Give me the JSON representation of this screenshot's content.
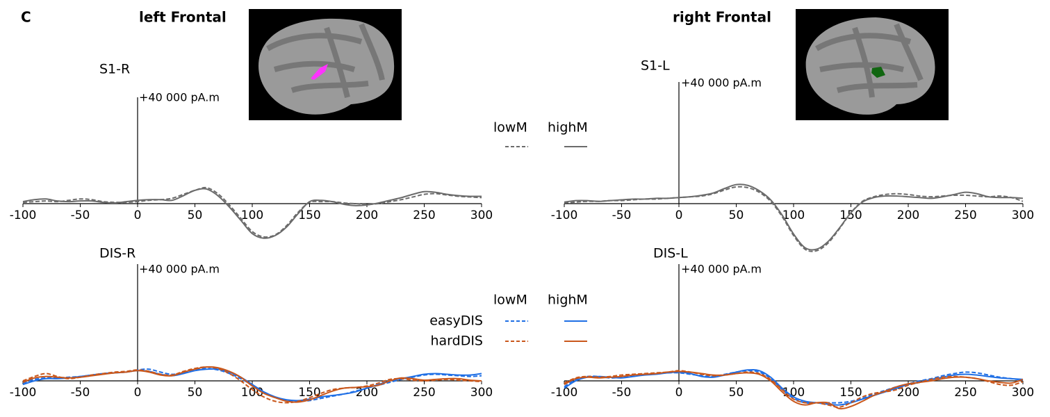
{
  "panel_label": "C",
  "left_title": "left Frontal",
  "right_title": "right Frontal",
  "chart_data": [
    {
      "type": "line",
      "title": "S1-R",
      "x": [
        -100,
        -90,
        -80,
        -70,
        -60,
        -50,
        -40,
        -30,
        -20,
        -10,
        0,
        10,
        20,
        30,
        40,
        50,
        60,
        70,
        80,
        90,
        100,
        110,
        120,
        130,
        140,
        150,
        160,
        170,
        180,
        190,
        200,
        210,
        220,
        230,
        240,
        250,
        260,
        270,
        280,
        290,
        300
      ],
      "xlim": [
        -100,
        300
      ],
      "xticks": [
        -100,
        -50,
        0,
        50,
        100,
        150,
        200,
        250,
        300
      ],
      "ylim": [
        -20000,
        40000
      ],
      "yticks": [
        {
          "value": 40000,
          "label": "+40 000 pA.m"
        }
      ],
      "series": [
        {
          "name": "lowM",
          "color": "#6b6b6b",
          "dash": true,
          "values": [
            500,
            750,
            1000,
            750,
            1250,
            1750,
            1500,
            750,
            500,
            500,
            750,
            1250,
            1500,
            2000,
            3500,
            5000,
            6000,
            3750,
            -500,
            -5500,
            -10500,
            -12500,
            -11750,
            -8250,
            -3250,
            500,
            750,
            750,
            250,
            0,
            -250,
            0,
            750,
            1500,
            2500,
            3500,
            3750,
            3250,
            2750,
            2500,
            2250
          ]
        },
        {
          "name": "highM",
          "color": "#6b6b6b",
          "dash": false,
          "values": [
            750,
            1500,
            1750,
            1000,
            750,
            1000,
            1000,
            500,
            250,
            750,
            1250,
            1500,
            1500,
            1250,
            3000,
            5000,
            5500,
            3000,
            -1250,
            -6250,
            -11250,
            -13000,
            -12000,
            -8750,
            -3750,
            750,
            1250,
            750,
            -250,
            -750,
            -500,
            250,
            1250,
            2250,
            3500,
            4500,
            4250,
            3500,
            3000,
            2750,
            2750
          ]
        }
      ]
    },
    {
      "type": "line",
      "title": "S1-L",
      "x": [
        -100,
        -90,
        -80,
        -70,
        -60,
        -50,
        -40,
        -30,
        -20,
        -10,
        0,
        10,
        20,
        30,
        40,
        50,
        60,
        70,
        80,
        90,
        100,
        110,
        120,
        130,
        140,
        150,
        160,
        170,
        180,
        190,
        200,
        210,
        220,
        230,
        240,
        250,
        260,
        270,
        280,
        290,
        300
      ],
      "xlim": [
        -100,
        300
      ],
      "xticks": [
        -100,
        -50,
        0,
        50,
        100,
        150,
        200,
        250,
        300
      ],
      "ylim": [
        -20000,
        40000
      ],
      "yticks": [
        {
          "value": 40000,
          "label": "+40 000 pA.m"
        }
      ],
      "series": [
        {
          "color": "#6b6b6b",
          "dash": true,
          "values": [
            250,
            500,
            750,
            750,
            1000,
            1000,
            1250,
            1500,
            1500,
            1750,
            2000,
            2250,
            2500,
            3250,
            4500,
            5500,
            5250,
            3750,
            750,
            -4250,
            -10500,
            -15000,
            -15500,
            -13000,
            -8250,
            -3000,
            750,
            2250,
            3000,
            3250,
            3000,
            2500,
            2250,
            2500,
            2750,
            2750,
            2500,
            2250,
            2500,
            2000,
            750
          ]
        },
        {
          "color": "#6b6b6b",
          "dash": false,
          "values": [
            500,
            1000,
            1000,
            750,
            1000,
            1250,
            1500,
            1500,
            1750,
            1750,
            2000,
            2250,
            2750,
            3500,
            5000,
            6250,
            6000,
            4250,
            1250,
            -3750,
            -10000,
            -14500,
            -15000,
            -12500,
            -8000,
            -3000,
            500,
            2000,
            2500,
            2500,
            2250,
            2000,
            1750,
            2250,
            3000,
            3750,
            3250,
            2250,
            2000,
            2000,
            1750
          ]
        }
      ]
    },
    {
      "type": "line",
      "title": "DIS-R",
      "x": [
        -100,
        -90,
        -80,
        -70,
        -60,
        -50,
        -40,
        -30,
        -20,
        -10,
        0,
        10,
        20,
        30,
        40,
        50,
        60,
        70,
        80,
        90,
        100,
        110,
        120,
        130,
        140,
        150,
        160,
        170,
        180,
        190,
        200,
        210,
        220,
        230,
        240,
        250,
        260,
        270,
        280,
        290,
        300
      ],
      "xlim": [
        -100,
        300
      ],
      "xticks": [
        -100,
        -50,
        0,
        50,
        100,
        150,
        200,
        250,
        300
      ],
      "ylim": [
        -20000,
        40000
      ],
      "yticks": [
        {
          "value": 40000,
          "label": "+40 000 pA.m"
        }
      ],
      "series": [
        {
          "name": "lowM",
          "group": "easyDIS",
          "color": "#1f6fe5",
          "dash": true,
          "values": [
            -750,
            500,
            1000,
            1000,
            1250,
            1500,
            2000,
            2500,
            2750,
            3000,
            3750,
            4000,
            3000,
            2250,
            2750,
            3750,
            4250,
            3750,
            2500,
            750,
            -1500,
            -4000,
            -5750,
            -6750,
            -7000,
            -6750,
            -6000,
            -5250,
            -4500,
            -3500,
            -2500,
            -1500,
            -500,
            500,
            1250,
            2000,
            2250,
            2000,
            1750,
            1500,
            1750
          ]
        },
        {
          "name": "highM",
          "group": "easyDIS",
          "color": "#1f6fe5",
          "dash": false,
          "values": [
            -1250,
            0,
            750,
            750,
            1000,
            1500,
            2000,
            2500,
            2750,
            3000,
            3500,
            3250,
            2250,
            1750,
            2500,
            3500,
            4000,
            4000,
            3000,
            1250,
            -1250,
            -3750,
            -5500,
            -6500,
            -6750,
            -6250,
            -5500,
            -5000,
            -4500,
            -3750,
            -2500,
            -1250,
            0,
            750,
            1500,
            2250,
            2500,
            2250,
            2000,
            2000,
            2500
          ]
        },
        {
          "name": "lowM",
          "group": "hardDIS",
          "color": "#c9571b",
          "dash": true,
          "values": [
            0,
            1500,
            2500,
            1500,
            750,
            1250,
            2000,
            2500,
            3000,
            3250,
            3750,
            3250,
            2250,
            2000,
            3250,
            4250,
            4750,
            4250,
            2500,
            0,
            -3000,
            -5500,
            -7000,
            -7500,
            -7000,
            -5750,
            -4250,
            -3000,
            -2500,
            -2250,
            -1750,
            -750,
            500,
            750,
            250,
            0,
            250,
            500,
            250,
            0,
            -250
          ]
        },
        {
          "name": "highM",
          "group": "hardDIS",
          "color": "#c9571b",
          "dash": false,
          "values": [
            -500,
            1000,
            1500,
            1250,
            1000,
            1250,
            1750,
            2250,
            2750,
            3000,
            3500,
            3000,
            2000,
            1750,
            3000,
            4000,
            4750,
            4500,
            3250,
            1250,
            -1750,
            -4250,
            -5750,
            -7000,
            -7250,
            -6500,
            -5000,
            -3500,
            -2500,
            -2250,
            -2000,
            -1500,
            0,
            1000,
            750,
            250,
            500,
            750,
            750,
            250,
            0
          ]
        }
      ]
    },
    {
      "type": "line",
      "title": "DIS-L",
      "x": [
        -100,
        -90,
        -80,
        -70,
        -60,
        -50,
        -40,
        -30,
        -20,
        -10,
        0,
        10,
        20,
        30,
        40,
        50,
        60,
        70,
        80,
        90,
        100,
        110,
        120,
        130,
        140,
        150,
        160,
        170,
        180,
        190,
        200,
        210,
        220,
        230,
        240,
        250,
        260,
        270,
        280,
        290,
        300
      ],
      "xlim": [
        -100,
        300
      ],
      "xticks": [
        -100,
        -50,
        0,
        50,
        100,
        150,
        200,
        250,
        300
      ],
      "ylim": [
        -20000,
        40000
      ],
      "yticks": [
        {
          "value": 40000,
          "label": "+40 000  pA.m"
        }
      ],
      "series": [
        {
          "color": "#1f6fe5",
          "dash": true,
          "values": [
            -2000,
            500,
            1500,
            1500,
            1000,
            1250,
            1750,
            2250,
            2500,
            2750,
            2750,
            2250,
            1750,
            1500,
            2250,
            3000,
            3500,
            3000,
            750,
            -3000,
            -6000,
            -7500,
            -7500,
            -7500,
            -7500,
            -7000,
            -6000,
            -4500,
            -3250,
            -2000,
            -1000,
            0,
            750,
            1750,
            2500,
            3000,
            2750,
            2000,
            1250,
            750,
            250
          ]
        },
        {
          "color": "#1f6fe5",
          "dash": false,
          "values": [
            -2500,
            0,
            1250,
            1500,
            1250,
            1000,
            1500,
            2000,
            2250,
            2750,
            3000,
            2500,
            1500,
            1250,
            2000,
            3000,
            3750,
            3500,
            1250,
            -2500,
            -5500,
            -7000,
            -7500,
            -8000,
            -8250,
            -7500,
            -6250,
            -5000,
            -3750,
            -2500,
            -1250,
            -500,
            500,
            1250,
            2000,
            2250,
            2000,
            1500,
            1000,
            750,
            500
          ]
        },
        {
          "color": "#c9571b",
          "dash": true,
          "values": [
            -750,
            1000,
            1500,
            1250,
            1500,
            2000,
            2250,
            2500,
            2750,
            3000,
            3500,
            3000,
            2250,
            1750,
            2000,
            2500,
            3000,
            2500,
            500,
            -3000,
            -6250,
            -7500,
            -7500,
            -8250,
            -9000,
            -7500,
            -5500,
            -4250,
            -3750,
            -3000,
            -1500,
            -500,
            500,
            1250,
            1500,
            1250,
            750,
            -250,
            -1250,
            -1500,
            -250
          ]
        },
        {
          "color": "#c9571b",
          "dash": false,
          "values": [
            -1250,
            750,
            1250,
            1000,
            1250,
            1500,
            2000,
            2250,
            2500,
            3000,
            3250,
            3000,
            2500,
            2000,
            2000,
            2500,
            2750,
            2250,
            0,
            -3750,
            -7000,
            -8250,
            -7500,
            -7500,
            -9500,
            -8750,
            -7000,
            -5000,
            -3500,
            -2000,
            -1000,
            -500,
            0,
            750,
            1250,
            1250,
            750,
            0,
            -500,
            -750,
            500
          ]
        }
      ]
    }
  ]
}
